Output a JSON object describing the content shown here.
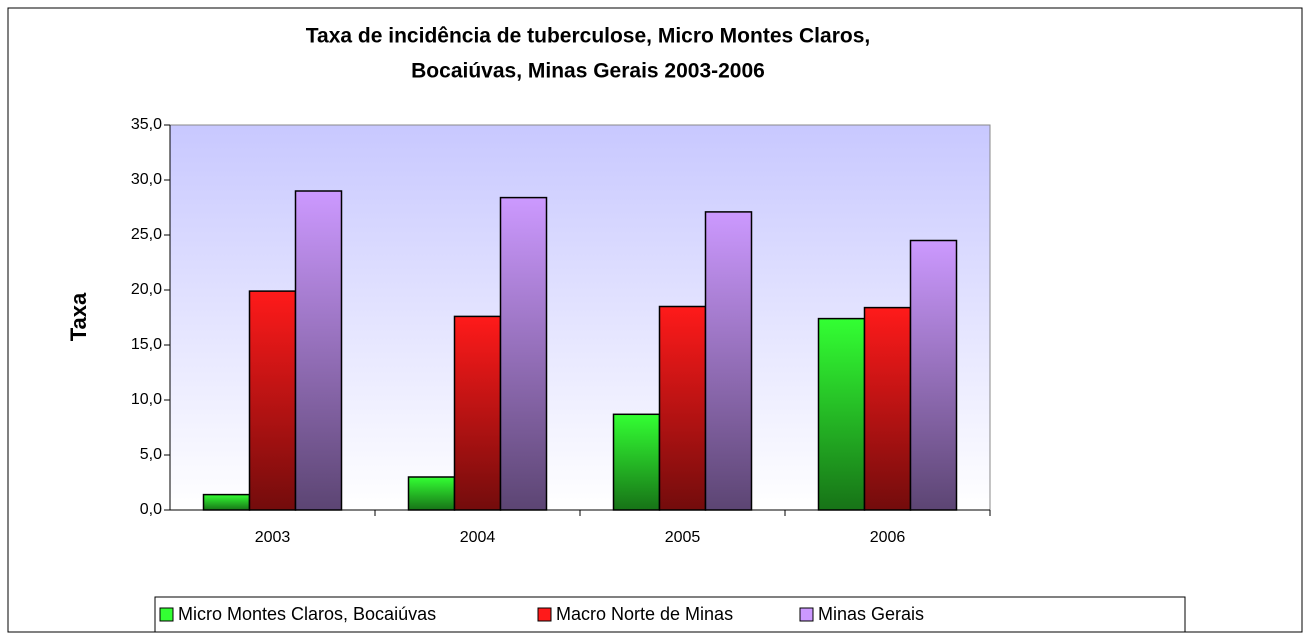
{
  "chart_data": {
    "type": "bar",
    "title": [
      "Taxa de incidência  de tuberculose, Micro Montes Claros,",
      "Bocaiúvas,  Minas Gerais 2003-2006"
    ],
    "y_label": "Taxa",
    "categories": [
      "2003",
      "2004",
      "2005",
      "2006"
    ],
    "series": [
      {
        "name": "Micro Montes Claros, Bocaiúvas",
        "color": "#33ff33",
        "values": [
          1.4,
          3.0,
          8.7,
          17.4
        ]
      },
      {
        "name": "Macro Norte de Minas",
        "color": "#ff1a1a",
        "values": [
          19.9,
          17.6,
          18.5,
          18.4
        ]
      },
      {
        "name": "Minas Gerais",
        "color": "#cc99ff",
        "values": [
          29.0,
          28.4,
          27.1,
          24.5
        ]
      }
    ],
    "ylim": [
      0,
      35
    ],
    "yticks": [
      {
        "value": 0,
        "label": "0,0"
      },
      {
        "value": 5,
        "label": "5,0"
      },
      {
        "value": 10,
        "label": "10,0"
      },
      {
        "value": 15,
        "label": "15,0"
      },
      {
        "value": 20,
        "label": "20,0"
      },
      {
        "value": 25,
        "label": "25,0"
      },
      {
        "value": 30,
        "label": "30,0"
      },
      {
        "value": 35,
        "label": "35,0"
      }
    ],
    "legend": "bottom"
  }
}
